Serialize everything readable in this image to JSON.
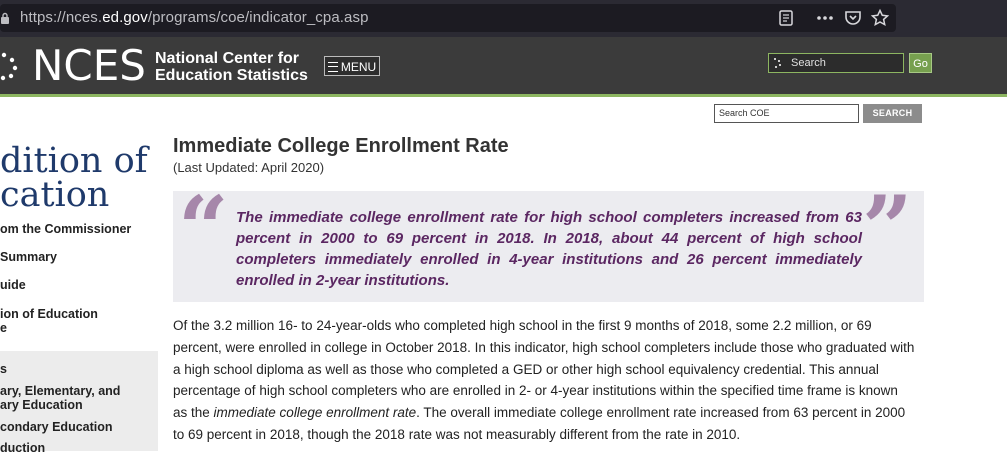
{
  "browser": {
    "url_prefix": "https://nces.",
    "url_domain": "ed.gov",
    "url_path": "/programs/coe/indicator_cpa.asp",
    "icons": [
      "reader-view-icon",
      "more-options-icon",
      "pocket-icon",
      "bookmark-star-icon"
    ]
  },
  "header": {
    "logo_text": "NCES",
    "org_line1": "National Center for",
    "org_line2": "Education Statistics",
    "menu_label": "MENU",
    "search_placeholder": "Search",
    "go_label": "Go",
    "accent_color": "#8db661"
  },
  "coe_search": {
    "placeholder": "Search COE",
    "button_label": "SEARCH"
  },
  "sidebar": {
    "title_line1": "dition of",
    "title_line2": "cation",
    "items": [
      "om the Commissioner",
      "Summary",
      "uide",
      "ion of Education",
      "e",
      "s",
      "ary, Elementary, and",
      "ary Education",
      "condary Education",
      "duction"
    ]
  },
  "main": {
    "title": "Immediate College Enrollment Rate",
    "last_updated": "(Last Updated: April 2020)",
    "quote": "The immediate college enrollment rate for high school completers increased from 63 percent in 2000 to 69 percent in 2018. In 2018, about 44 percent of high school completers immediately enrolled in 4-year institutions and 26 percent immediately enrolled in 2-year institutions.",
    "body_part1": "Of the 3.2 million 16- to 24-year-olds who completed high school in the first 9 months of 2018, some 2.2 million, or 69 percent, were enrolled in college in October 2018. In this indicator, high school completers include those who graduated with a high school diploma as well as those who completed a GED or other high school equivalency credential. This annual percentage of high school completers who are enrolled in 2- or 4-year institutions within the specified time frame is known as the ",
    "body_term": "immediate college enrollment rate",
    "body_part2": ". The overall immediate college enrollment rate increased from 63 percent in 2000 to 69 percent in 2018, though the 2018 rate was not measurably different from the rate in 2010."
  }
}
